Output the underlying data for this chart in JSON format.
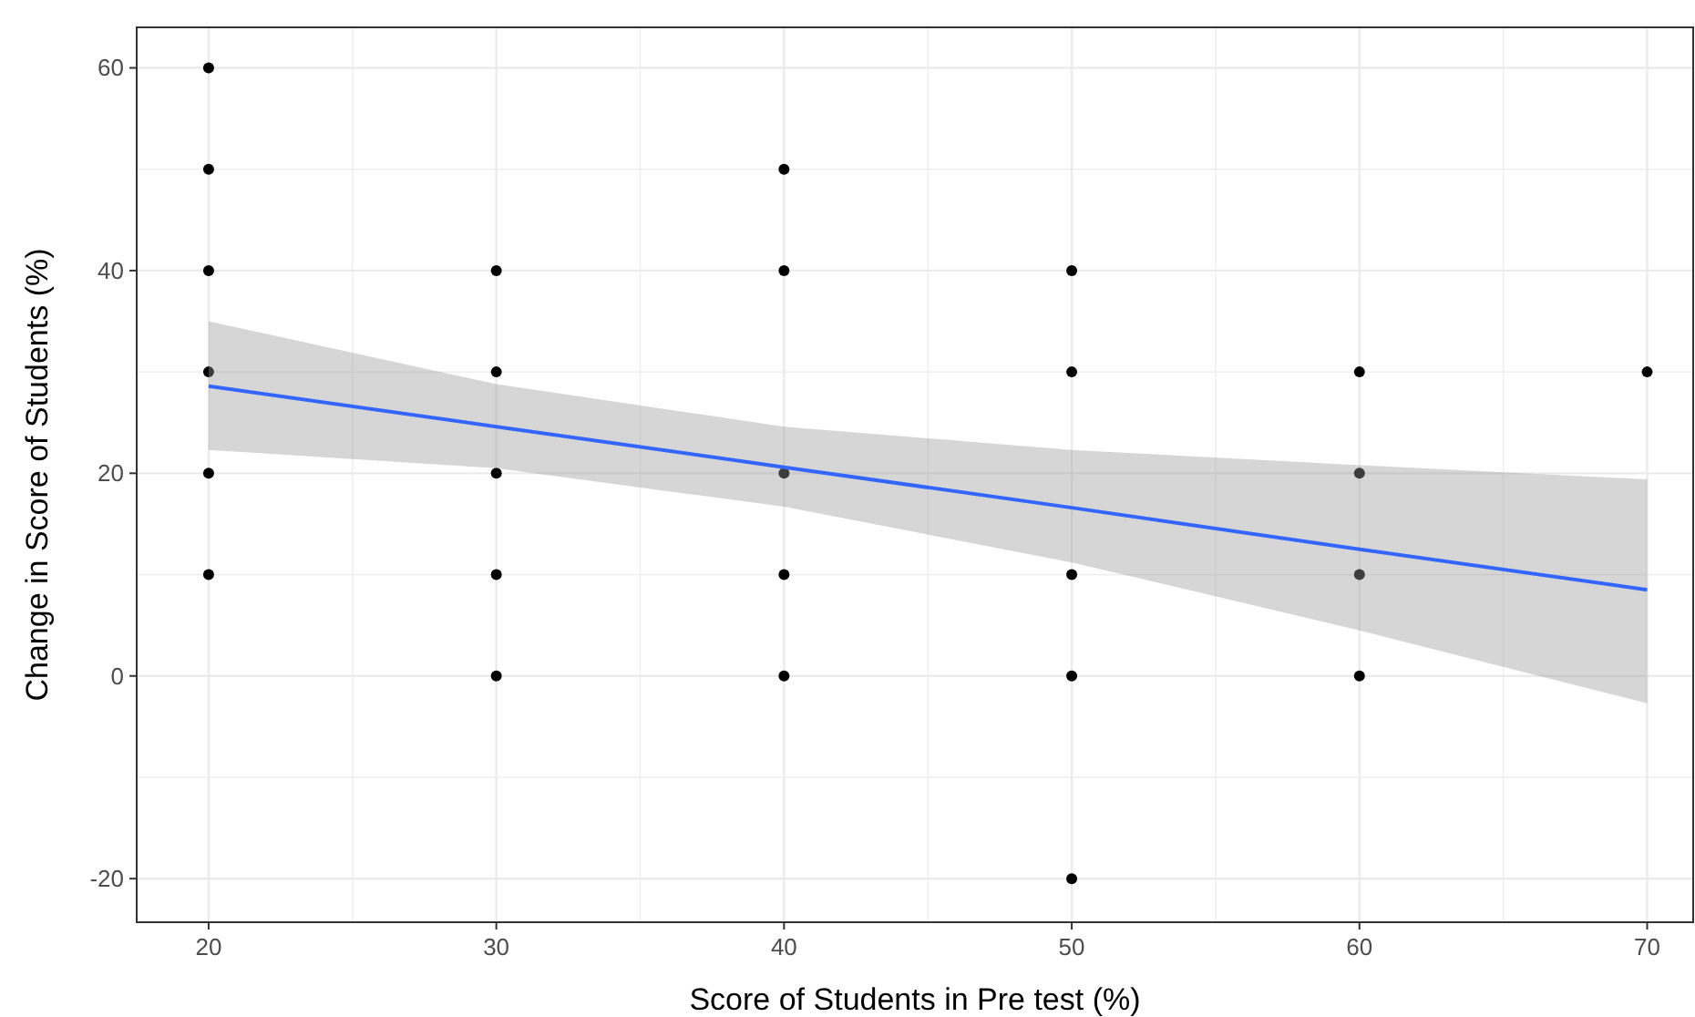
{
  "chart_data": {
    "type": "scatter",
    "xlabel": "Score of Students in Pre test (%)",
    "ylabel": "Change in Score of Students (%)",
    "xlim": [
      17.5,
      71.6
    ],
    "ylim": [
      -24.3,
      64
    ],
    "xticks": [
      20,
      {
        "value": 25,
        "label": null
      },
      30,
      {
        "value": 35,
        "label": null
      },
      40,
      {
        "value": 45,
        "label": null
      },
      50,
      {
        "value": 55,
        "label": null
      },
      60,
      {
        "value": 65,
        "label": null
      },
      70
    ],
    "yticks": [
      -20,
      {
        "value": -10,
        "label": null
      },
      0,
      {
        "value": 10,
        "label": null
      },
      20,
      {
        "value": 30,
        "label": null
      },
      40,
      {
        "value": 50,
        "label": null
      },
      60
    ],
    "grid": true,
    "marker": "circle",
    "series": [
      {
        "color": "#000000",
        "x": [
          20,
          20,
          20,
          20,
          20,
          20,
          30,
          30,
          30,
          30,
          30,
          40,
          40,
          40,
          40,
          40,
          50,
          50,
          50,
          50,
          50,
          60,
          60,
          60,
          60,
          70
        ],
        "values": [
          60,
          50,
          40,
          30,
          20,
          10,
          40,
          30,
          20,
          10,
          0,
          50,
          40,
          20,
          10,
          0,
          40,
          30,
          10,
          0,
          -20,
          30,
          20,
          10,
          0,
          30
        ]
      },
      {
        "type": "line",
        "color": "#3366ff",
        "marker": "none",
        "line_style": "solid",
        "x": [
          20,
          30,
          40,
          50,
          60,
          70
        ],
        "values": [
          28.6,
          24.6,
          20.6,
          16.6,
          12.5,
          8.5
        ],
        "lower": [
          22.3,
          20.5,
          16.7,
          11.2,
          4.5,
          -2.7
        ],
        "upper": [
          35,
          28.8,
          24.6,
          22.3,
          20.8,
          19.4
        ]
      }
    ]
  }
}
